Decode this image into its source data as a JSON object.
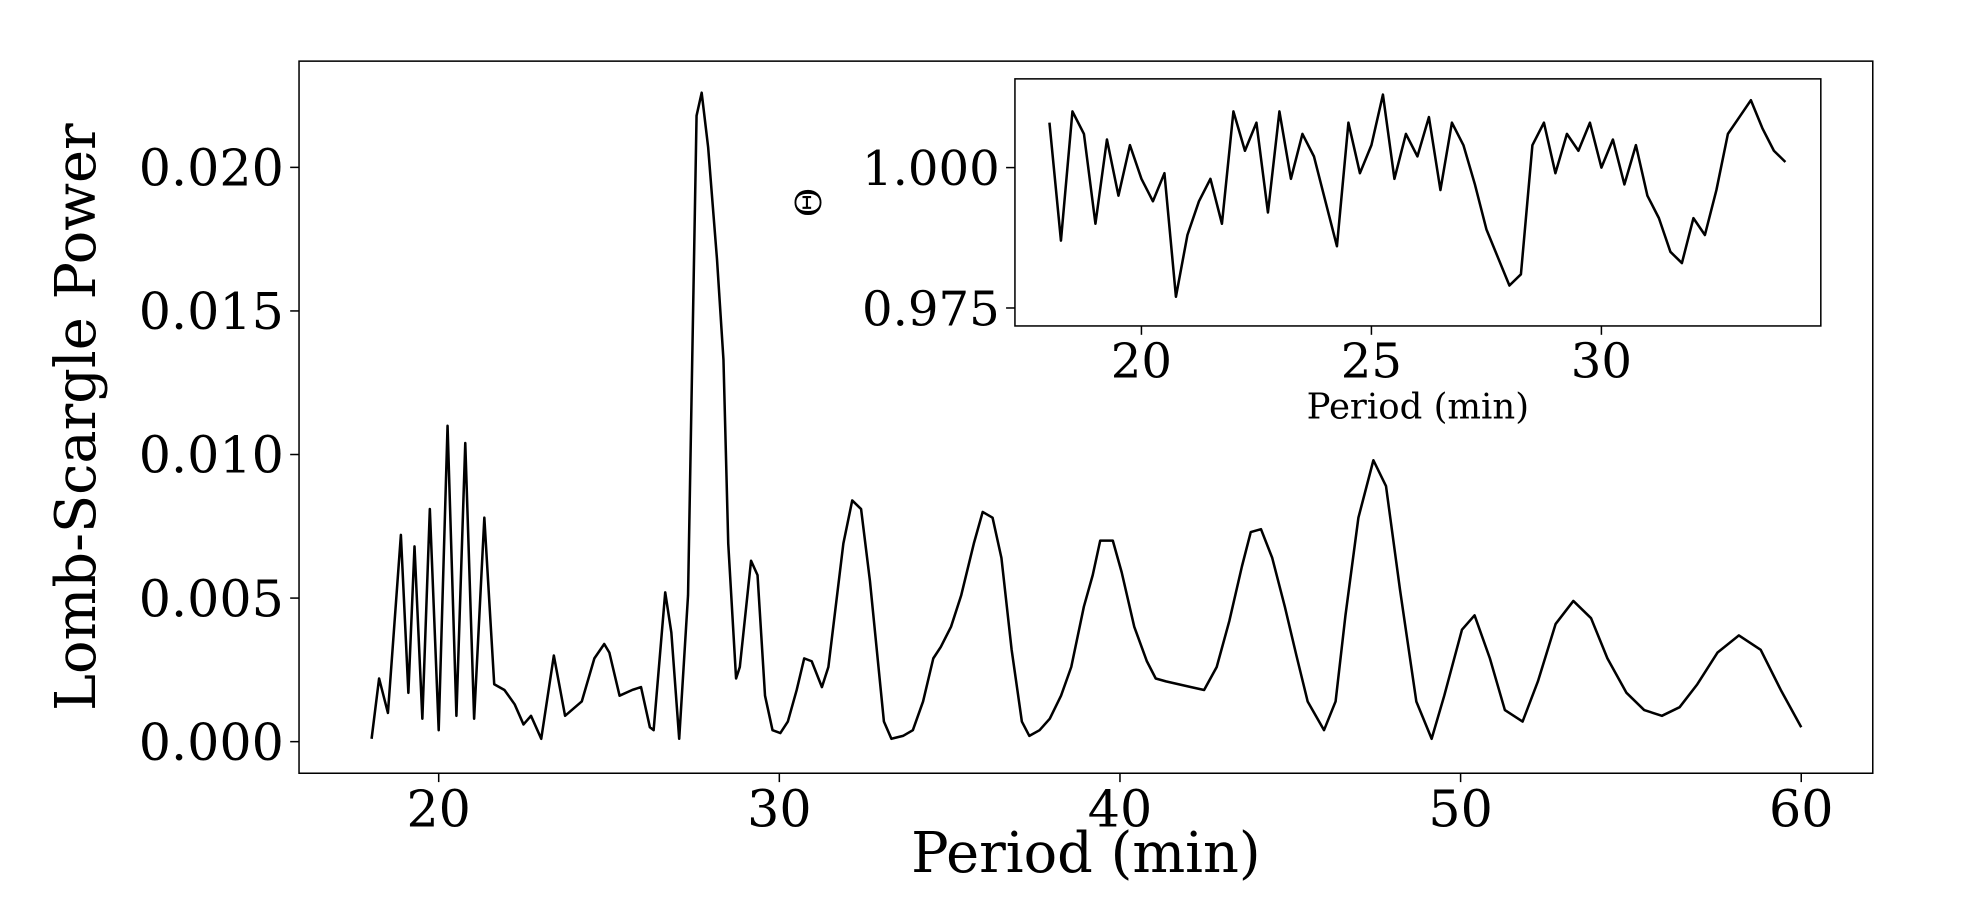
{
  "chart_data": [
    {
      "type": "line",
      "xlabel": "Period (min)",
      "ylabel": "Lomb-Scargle Power",
      "xlim": [
        15.9,
        62.1
      ],
      "ylim": [
        -0.0011,
        0.0237
      ],
      "xticks": [
        20,
        30,
        40,
        50,
        60
      ],
      "yticks": [
        {
          "value": 0,
          "label": "0.000"
        },
        {
          "value": 0.005,
          "label": "0.005"
        },
        {
          "value": 0.01,
          "label": "0.010"
        },
        {
          "value": 0.015,
          "label": "0.015"
        },
        {
          "value": 0.02,
          "label": "0.020"
        }
      ],
      "color": "#000000",
      "x": [
        18.03,
        18.25,
        18.51,
        18.89,
        19.11,
        19.29,
        19.52,
        19.74,
        20.0,
        20.26,
        20.52,
        20.78,
        21.04,
        21.34,
        21.63,
        21.93,
        22.23,
        22.49,
        22.71,
        23.01,
        23.38,
        23.71,
        24.2,
        24.57,
        24.86,
        25.01,
        25.31,
        25.68,
        25.94,
        26.2,
        26.31,
        26.65,
        26.83,
        27.06,
        27.32,
        27.57,
        27.72,
        27.91,
        28.17,
        28.36,
        28.5,
        28.73,
        28.84,
        29.17,
        29.36,
        29.58,
        29.8,
        30.03,
        30.25,
        30.51,
        30.73,
        30.95,
        31.25,
        31.44,
        31.88,
        32.14,
        32.4,
        32.66,
        33.07,
        33.29,
        33.63,
        33.92,
        34.22,
        34.52,
        34.74,
        35.04,
        35.34,
        35.71,
        35.97,
        36.26,
        36.52,
        36.82,
        37.12,
        37.34,
        37.64,
        37.94,
        38.27,
        38.57,
        38.94,
        39.2,
        39.42,
        39.79,
        40.05,
        40.42,
        40.79,
        41.05,
        41.35,
        41.72,
        42.09,
        42.47,
        42.84,
        43.21,
        43.58,
        43.84,
        44.14,
        44.47,
        44.84,
        45.18,
        45.51,
        45.99,
        46.33,
        46.62,
        47.0,
        47.44,
        47.81,
        48.22,
        48.7,
        49.15,
        49.52,
        50.04,
        50.41,
        50.86,
        51.3,
        51.82,
        52.27,
        52.79,
        53.31,
        53.83,
        54.31,
        54.87,
        55.39,
        55.91,
        56.43,
        56.95,
        57.54,
        58.17,
        58.81,
        59.4,
        60.0
      ],
      "values": [
        0.0001,
        0.0022,
        0.001,
        0.0072,
        0.0017,
        0.0068,
        0.0008,
        0.0081,
        0.0004,
        0.011,
        0.0009,
        0.0104,
        0.0008,
        0.0078,
        0.002,
        0.0018,
        0.0013,
        0.0006,
        0.0009,
        0.0001,
        0.003,
        0.0009,
        0.0014,
        0.0029,
        0.0034,
        0.0031,
        0.0016,
        0.0018,
        0.0019,
        0.0005,
        0.0004,
        0.0052,
        0.0038,
        0.0001,
        0.0051,
        0.0218,
        0.0226,
        0.0207,
        0.0168,
        0.0133,
        0.0069,
        0.0022,
        0.0026,
        0.0063,
        0.0058,
        0.0016,
        0.0004,
        0.0003,
        0.0007,
        0.0018,
        0.0029,
        0.0028,
        0.0019,
        0.0026,
        0.0069,
        0.0084,
        0.0081,
        0.0056,
        0.0007,
        0.0001,
        0.0002,
        0.0004,
        0.0014,
        0.0029,
        0.0033,
        0.004,
        0.0051,
        0.0069,
        0.008,
        0.0078,
        0.0064,
        0.0032,
        0.0007,
        0.0002,
        0.0004,
        0.0008,
        0.0016,
        0.0026,
        0.0047,
        0.0058,
        0.007,
        0.007,
        0.0059,
        0.004,
        0.0028,
        0.0022,
        0.0021,
        0.002,
        0.0019,
        0.0018,
        0.0026,
        0.0042,
        0.0061,
        0.0073,
        0.0074,
        0.0064,
        0.0047,
        0.003,
        0.0014,
        0.0004,
        0.0014,
        0.0044,
        0.0078,
        0.0098,
        0.0089,
        0.0053,
        0.0014,
        0.0001,
        0.0016,
        0.0039,
        0.0044,
        0.0029,
        0.0011,
        0.0007,
        0.0021,
        0.0041,
        0.0049,
        0.0043,
        0.0029,
        0.0017,
        0.0011,
        0.0009,
        0.0012,
        0.002,
        0.0031,
        0.0037,
        0.0032,
        0.0018,
        0.0005
      ]
    },
    {
      "type": "line",
      "xlabel": "Period (min)",
      "ylabel": "Θ",
      "xlim": [
        17.25,
        34.77
      ],
      "ylim": [
        0.9718,
        1.0158
      ],
      "xticks": [
        20,
        25,
        30
      ],
      "yticks": [
        {
          "value": 0.975,
          "label": "0.975"
        },
        {
          "value": 1,
          "label": "1.000"
        }
      ],
      "color": "#000000",
      "x": [
        18,
        18.25,
        18.5,
        18.75,
        19,
        19.25,
        19.5,
        19.75,
        20,
        20.25,
        20.5,
        20.75,
        21,
        21.25,
        21.5,
        21.75,
        22,
        22.25,
        22.5,
        22.75,
        23,
        23.25,
        23.5,
        23.75,
        24,
        24.25,
        24.5,
        24.75,
        25,
        25.25,
        25.5,
        25.75,
        26,
        26.25,
        26.5,
        26.75,
        27,
        27.25,
        27.5,
        27.75,
        28,
        28.25,
        28.5,
        28.75,
        29,
        29.25,
        29.5,
        29.75,
        30,
        30.25,
        30.5,
        30.75,
        31,
        31.25,
        31.5,
        31.75,
        32,
        32.25,
        32.5,
        32.75,
        33,
        33.25,
        33.5,
        33.75,
        34
      ],
      "values": [
        1.008,
        0.987,
        1.01,
        1.006,
        0.99,
        1.005,
        0.995,
        1.004,
        0.998,
        0.994,
        0.999,
        0.977,
        0.988,
        0.994,
        0.998,
        0.99,
        1.01,
        1.003,
        1.008,
        0.992,
        1.01,
        0.998,
        1.006,
        1.002,
        0.994,
        0.986,
        1.008,
        0.999,
        1.004,
        1.013,
        0.998,
        1.006,
        1.002,
        1.009,
        0.996,
        1.008,
        1.004,
        0.997,
        0.989,
        0.984,
        0.979,
        0.981,
        1.004,
        1.008,
        0.999,
        1.006,
        1.003,
        1.008,
        1.0,
        1.005,
        0.997,
        1.004,
        0.995,
        0.991,
        0.985,
        0.983,
        0.991,
        0.988,
        0.996,
        1.006,
        1.009,
        1.012,
        1.007,
        1.003,
        1.001
      ]
    }
  ]
}
